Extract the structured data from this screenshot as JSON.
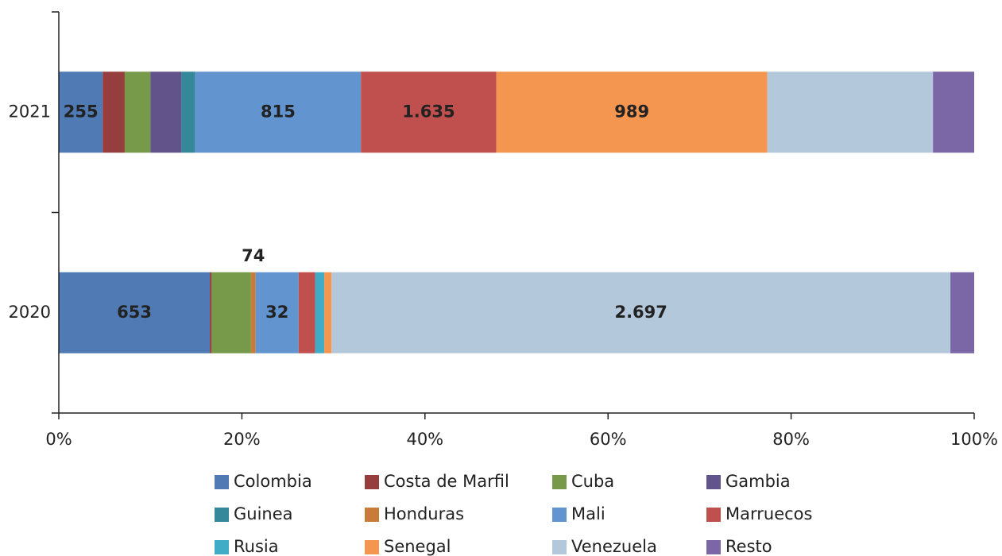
{
  "chart_data": {
    "type": "stacked_barh",
    "categories": [
      "2020",
      "2021"
    ],
    "series": [
      {
        "name": "Colombia",
        "color": "#4f7ab3",
        "values": [
          16.5,
          4.8
        ]
      },
      {
        "name": "Costa de Marfil",
        "color": "#953e3d",
        "values": [
          0.2,
          2.4
        ]
      },
      {
        "name": "Cuba",
        "color": "#779a4a",
        "values": [
          4.3,
          2.8
        ]
      },
      {
        "name": "Gambia",
        "color": "#62538a",
        "values": [
          0,
          3.4
        ]
      },
      {
        "name": "Guinea",
        "color": "#35879a",
        "values": [
          0,
          1.5
        ]
      },
      {
        "name": "Honduras",
        "color": "#c97b3a",
        "values": [
          0.5,
          0
        ]
      },
      {
        "name": "Mali",
        "color": "#6294cf",
        "values": [
          4.7,
          18.1
        ]
      },
      {
        "name": "Marruecos",
        "color": "#c0504e",
        "values": [
          1.8,
          14.8
        ]
      },
      {
        "name": "Rusia",
        "color": "#41acc6",
        "values": [
          1.0,
          0
        ]
      },
      {
        "name": "Senegal",
        "color": "#f59650",
        "values": [
          0.8,
          29.6
        ]
      },
      {
        "name": "Venezuela",
        "color": "#b4c8dc",
        "values": [
          67.6,
          18.1
        ]
      },
      {
        "name": "Resto",
        "color": "#7b66a6",
        "values": [
          2.6,
          4.5
        ]
      }
    ],
    "annotations": [
      {
        "text": "653",
        "series": "Colombia",
        "category": "2020"
      },
      {
        "text": "74",
        "series": "Honduras",
        "category": "2020"
      },
      {
        "text": "32",
        "series": "Mali",
        "category": "2020"
      },
      {
        "text": "2.697",
        "series": "Venezuela",
        "category": "2020"
      },
      {
        "text": "255",
        "series": "Colombia",
        "category": "2021"
      },
      {
        "text": "815",
        "series": "Mali",
        "category": "2021"
      },
      {
        "text": "1.635",
        "series": "Marruecos",
        "category": "2021"
      },
      {
        "text": "989",
        "series": "Senegal",
        "category": "2021"
      }
    ],
    "xlim": [
      0,
      100
    ],
    "xticks": [
      {
        "value": 0,
        "label": "0%"
      },
      {
        "value": 20,
        "label": "20%"
      },
      {
        "value": 40,
        "label": "40%"
      },
      {
        "value": 60,
        "label": "60%"
      },
      {
        "value": 80,
        "label": "80%"
      },
      {
        "value": 100,
        "label": "100%"
      }
    ],
    "legend": "bottom"
  }
}
